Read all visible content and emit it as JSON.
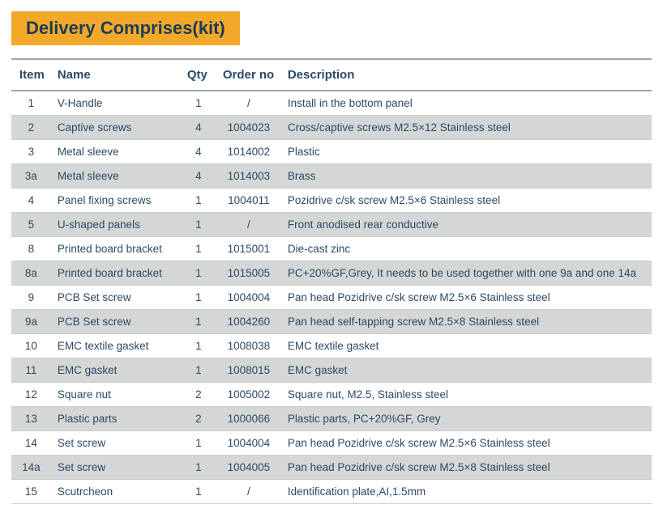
{
  "title": {
    "text": "Delivery Comprises(kit)",
    "bg_color": "#f2a92a",
    "text_color": "#1a3a5a",
    "fontsize": 22,
    "fontweight": 600
  },
  "table": {
    "type": "table",
    "text_color": "#2b4a66",
    "header_border_color": "#9aa5ad",
    "row_border_color": "#c8cdd1",
    "row_bg_odd": "#ffffff",
    "row_bg_even": "#d5d7d6",
    "header_fontsize": 15,
    "header_fontweight": 700,
    "cell_fontsize": 13.5,
    "columns": [
      {
        "key": "item",
        "label": "Item",
        "width": 48,
        "align": "center"
      },
      {
        "key": "name",
        "label": "Name",
        "width": 160,
        "align": "left"
      },
      {
        "key": "qty",
        "label": "Qty",
        "width": 44,
        "align": "center"
      },
      {
        "key": "order",
        "label": "Order no",
        "width": 80,
        "align": "center"
      },
      {
        "key": "desc",
        "label": "Description",
        "align": "left"
      }
    ],
    "rows": [
      {
        "item": "1",
        "name": "V-Handle",
        "qty": "1",
        "order": "/",
        "desc": "Install in the bottom panel"
      },
      {
        "item": "2",
        "name": "Captive screws",
        "qty": "4",
        "order": "1004023",
        "desc": "Cross/captive screws M2.5×12 Stainless steel"
      },
      {
        "item": "3",
        "name": "Metal sleeve",
        "qty": "4",
        "order": "1014002",
        "desc": "Plastic"
      },
      {
        "item": "3a",
        "name": "Metal sleeve",
        "qty": "4",
        "order": "1014003",
        "desc": "Brass"
      },
      {
        "item": "4",
        "name": "Panel fixing screws",
        "qty": "1",
        "order": "1004011",
        "desc": "Pozidrive c/sk screw M2.5×6 Stainless steel"
      },
      {
        "item": "5",
        "name": "U-shaped panels",
        "qty": "1",
        "order": "/",
        "desc": "Front anodised rear conductive"
      },
      {
        "item": "8",
        "name": "Printed board bracket",
        "qty": "1",
        "order": "1015001",
        "desc": "Die-cast zinc"
      },
      {
        "item": "8a",
        "name": "Printed board bracket",
        "qty": "1",
        "order": "1015005",
        "desc": "PC+20%GF,Grey, It needs to be used together with one 9a and one 14a"
      },
      {
        "item": "9",
        "name": "PCB Set screw",
        "qty": "1",
        "order": "1004004",
        "desc": "Pan head Pozidrive c/sk screw M2.5×6 Stainless steel"
      },
      {
        "item": "9a",
        "name": "PCB Set screw",
        "qty": "1",
        "order": "1004260",
        "desc": "Pan head self-tapping screw M2.5×8 Stainless steel"
      },
      {
        "item": "10",
        "name": "EMC textile gasket",
        "qty": "1",
        "order": "1008038",
        "desc": "EMC textile gasket"
      },
      {
        "item": "11",
        "name": "EMC gasket",
        "qty": "1",
        "order": "1008015",
        "desc": "EMC gasket"
      },
      {
        "item": "12",
        "name": "Square nut",
        "qty": "2",
        "order": "1005002",
        "desc": "Square nut, M2.5, Stainless steel"
      },
      {
        "item": "13",
        "name": "Plastic parts",
        "qty": "2",
        "order": "1000066",
        "desc": "Plastic parts, PC+20%GF, Grey"
      },
      {
        "item": "14",
        "name": "Set screw",
        "qty": "1",
        "order": "1004004",
        "desc": "Pan head Pozidrive c/sk screw M2.5×6 Stainless steel"
      },
      {
        "item": "14a",
        "name": "Set screw",
        "qty": "1",
        "order": "1004005",
        "desc": "Pan head Pozidrive c/sk screw M2.5×8 Stainless steel"
      },
      {
        "item": "15",
        "name": "Scutrcheon",
        "qty": "1",
        "order": "/",
        "desc": "Identification plate,AI,1.5mm"
      }
    ]
  }
}
